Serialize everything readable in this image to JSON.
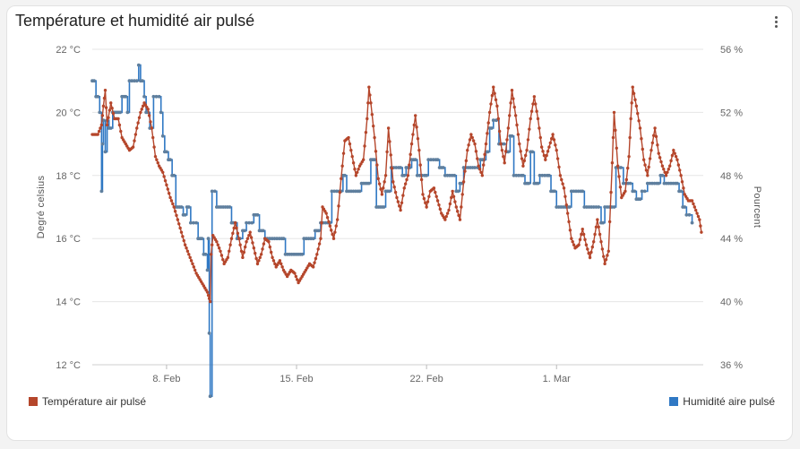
{
  "card": {
    "title": "Température et humidité air pulsé"
  },
  "colors": {
    "temperature": "#b5462b",
    "humidity": "#2f78c4",
    "humidity_marker": "#5f7f9e",
    "grid": "#e6e6e6"
  },
  "chart_data": {
    "type": "line",
    "x_ticks": [
      "8. Feb",
      "15. Feb",
      "22. Feb",
      "1. Mar"
    ],
    "x_range": [
      "Feb 4",
      "Mar 7"
    ],
    "y_left": {
      "label": "Degré celsius",
      "ticks": [
        "12 °C",
        "14 °C",
        "16 °C",
        "18 °C",
        "20 °C",
        "22 °C"
      ],
      "range": [
        12,
        22
      ]
    },
    "y_right": {
      "label": "Pourcent",
      "ticks": [
        "36 %",
        "40 %",
        "44 %",
        "48 %",
        "52 %",
        "56 %"
      ],
      "range": [
        36,
        56
      ]
    },
    "legend_position": "bottom",
    "series": [
      {
        "name": "Température air pulsé",
        "axis": "left",
        "style": "line-with-markers",
        "points": [
          [
            4.0,
            19.3
          ],
          [
            4.3,
            19.3
          ],
          [
            4.5,
            19.6
          ],
          [
            4.6,
            20.2
          ],
          [
            4.7,
            20.7
          ],
          [
            4.8,
            19.6
          ],
          [
            5.0,
            20.3
          ],
          [
            5.2,
            19.8
          ],
          [
            5.4,
            19.8
          ],
          [
            5.6,
            19.2
          ],
          [
            5.8,
            19.0
          ],
          [
            6.0,
            18.8
          ],
          [
            6.2,
            18.9
          ],
          [
            6.4,
            19.5
          ],
          [
            6.6,
            20.0
          ],
          [
            6.8,
            20.3
          ],
          [
            7.0,
            20.1
          ],
          [
            7.2,
            19.5
          ],
          [
            7.4,
            18.6
          ],
          [
            7.6,
            18.3
          ],
          [
            7.8,
            18.1
          ],
          [
            8.0,
            17.7
          ],
          [
            8.2,
            17.3
          ],
          [
            8.4,
            17.0
          ],
          [
            8.6,
            16.6
          ],
          [
            8.8,
            16.2
          ],
          [
            9.0,
            15.8
          ],
          [
            9.2,
            15.5
          ],
          [
            9.4,
            15.2
          ],
          [
            9.6,
            14.9
          ],
          [
            9.8,
            14.7
          ],
          [
            10.0,
            14.5
          ],
          [
            10.2,
            14.3
          ],
          [
            10.35,
            14.0
          ],
          [
            10.4,
            15.5
          ],
          [
            10.5,
            16.1
          ],
          [
            10.7,
            15.9
          ],
          [
            10.9,
            15.6
          ],
          [
            11.1,
            15.2
          ],
          [
            11.3,
            15.4
          ],
          [
            11.5,
            16.0
          ],
          [
            11.7,
            16.5
          ],
          [
            11.9,
            16.0
          ],
          [
            12.1,
            15.4
          ],
          [
            12.3,
            15.9
          ],
          [
            12.5,
            16.2
          ],
          [
            12.7,
            15.7
          ],
          [
            12.9,
            15.2
          ],
          [
            13.1,
            15.5
          ],
          [
            13.3,
            16.0
          ],
          [
            13.5,
            15.9
          ],
          [
            13.7,
            15.4
          ],
          [
            13.9,
            15.1
          ],
          [
            14.1,
            15.3
          ],
          [
            14.3,
            15.0
          ],
          [
            14.5,
            14.8
          ],
          [
            14.7,
            15.0
          ],
          [
            14.9,
            14.9
          ],
          [
            15.1,
            14.6
          ],
          [
            15.3,
            14.8
          ],
          [
            15.5,
            15.0
          ],
          [
            15.7,
            15.2
          ],
          [
            15.9,
            15.1
          ],
          [
            16.1,
            15.5
          ],
          [
            16.3,
            16.0
          ],
          [
            16.4,
            17.0
          ],
          [
            16.6,
            16.8
          ],
          [
            16.8,
            16.4
          ],
          [
            17.0,
            16.0
          ],
          [
            17.2,
            16.6
          ],
          [
            17.4,
            17.9
          ],
          [
            17.6,
            19.1
          ],
          [
            17.8,
            19.2
          ],
          [
            18.0,
            18.6
          ],
          [
            18.2,
            18.0
          ],
          [
            18.4,
            18.3
          ],
          [
            18.6,
            18.5
          ],
          [
            18.8,
            19.8
          ],
          [
            18.9,
            20.8
          ],
          [
            19.0,
            20.3
          ],
          [
            19.2,
            19.2
          ],
          [
            19.4,
            17.9
          ],
          [
            19.6,
            17.4
          ],
          [
            19.8,
            18.0
          ],
          [
            19.95,
            19.5
          ],
          [
            20.2,
            17.8
          ],
          [
            20.4,
            17.3
          ],
          [
            20.6,
            16.9
          ],
          [
            20.8,
            17.6
          ],
          [
            21.0,
            18.0
          ],
          [
            21.2,
            19.0
          ],
          [
            21.4,
            19.9
          ],
          [
            21.6,
            18.8
          ],
          [
            21.8,
            17.4
          ],
          [
            22.0,
            17.0
          ],
          [
            22.2,
            17.5
          ],
          [
            22.4,
            17.6
          ],
          [
            22.6,
            17.2
          ],
          [
            22.8,
            16.8
          ],
          [
            23.0,
            16.6
          ],
          [
            23.2,
            16.9
          ],
          [
            23.4,
            17.5
          ],
          [
            23.6,
            17.0
          ],
          [
            23.8,
            16.6
          ],
          [
            24.0,
            17.8
          ],
          [
            24.2,
            18.8
          ],
          [
            24.4,
            19.3
          ],
          [
            24.6,
            19.0
          ],
          [
            24.8,
            18.3
          ],
          [
            25.0,
            18.0
          ],
          [
            25.2,
            19.0
          ],
          [
            25.4,
            20.0
          ],
          [
            25.6,
            20.8
          ],
          [
            25.8,
            20.2
          ],
          [
            26.0,
            19.0
          ],
          [
            26.2,
            18.4
          ],
          [
            26.4,
            19.5
          ],
          [
            26.6,
            20.7
          ],
          [
            26.8,
            19.9
          ],
          [
            27.0,
            19.0
          ],
          [
            27.2,
            18.3
          ],
          [
            27.4,
            18.8
          ],
          [
            27.6,
            19.8
          ],
          [
            27.8,
            20.5
          ],
          [
            28.0,
            19.8
          ],
          [
            28.2,
            18.9
          ],
          [
            28.4,
            18.5
          ],
          [
            28.6,
            18.9
          ],
          [
            28.8,
            19.3
          ],
          [
            29.0,
            18.8
          ],
          [
            29.2,
            18.0
          ],
          [
            29.4,
            17.6
          ],
          [
            29.6,
            16.8
          ],
          [
            29.8,
            16.0
          ],
          [
            30.0,
            15.7
          ],
          [
            30.2,
            15.8
          ],
          [
            30.4,
            16.3
          ],
          [
            30.6,
            15.8
          ],
          [
            30.8,
            15.4
          ],
          [
            31.0,
            15.9
          ],
          [
            31.2,
            16.6
          ],
          [
            31.4,
            15.9
          ],
          [
            31.6,
            15.2
          ],
          [
            31.8,
            15.6
          ],
          [
            32.0,
            18.4
          ],
          [
            32.1,
            20.0
          ],
          [
            32.3,
            18.3
          ],
          [
            32.5,
            17.3
          ],
          [
            32.7,
            17.5
          ],
          [
            32.9,
            18.6
          ],
          [
            33.0,
            19.8
          ],
          [
            33.1,
            20.8
          ],
          [
            33.3,
            20.2
          ],
          [
            33.5,
            19.5
          ],
          [
            33.7,
            18.5
          ],
          [
            33.9,
            18.0
          ],
          [
            34.1,
            18.8
          ],
          [
            34.3,
            19.5
          ],
          [
            34.5,
            18.7
          ],
          [
            34.7,
            18.3
          ],
          [
            34.9,
            18.0
          ],
          [
            35.1,
            18.3
          ],
          [
            35.3,
            18.8
          ],
          [
            35.5,
            18.5
          ],
          [
            35.7,
            18.0
          ],
          [
            35.9,
            17.4
          ],
          [
            36.1,
            17.2
          ],
          [
            36.3,
            17.2
          ],
          [
            36.5,
            16.9
          ],
          [
            36.7,
            16.6
          ],
          [
            36.8,
            16.2
          ]
        ]
      },
      {
        "name": "Humidité aire pulsé",
        "axis": "right",
        "style": "step-with-markers",
        "points": [
          [
            4.0,
            54.0
          ],
          [
            4.2,
            53.0
          ],
          [
            4.4,
            52.0
          ],
          [
            4.5,
            47.0
          ],
          [
            4.55,
            50.0
          ],
          [
            4.6,
            51.5
          ],
          [
            4.7,
            49.5
          ],
          [
            4.8,
            51.5
          ],
          [
            4.9,
            51.0
          ],
          [
            5.1,
            52.0
          ],
          [
            5.4,
            52.0
          ],
          [
            5.6,
            53.0
          ],
          [
            5.9,
            52.0
          ],
          [
            6.0,
            54.0
          ],
          [
            6.4,
            54.0
          ],
          [
            6.5,
            55.0
          ],
          [
            6.6,
            54.0
          ],
          [
            6.8,
            53.0
          ],
          [
            6.9,
            52.0
          ],
          [
            7.1,
            51.0
          ],
          [
            7.3,
            53.0
          ],
          [
            7.6,
            53.0
          ],
          [
            7.7,
            52.0
          ],
          [
            7.8,
            50.5
          ],
          [
            7.9,
            49.5
          ],
          [
            8.1,
            49.0
          ],
          [
            8.3,
            48.0
          ],
          [
            8.5,
            46.0
          ],
          [
            8.7,
            46.0
          ],
          [
            8.9,
            45.5
          ],
          [
            9.1,
            46.0
          ],
          [
            9.3,
            45.0
          ],
          [
            9.6,
            45.0
          ],
          [
            9.7,
            44.0
          ],
          [
            9.9,
            44.0
          ],
          [
            10.0,
            43.0
          ],
          [
            10.2,
            42.0
          ],
          [
            10.25,
            44.0
          ],
          [
            10.3,
            38.0
          ],
          [
            10.35,
            34.0
          ],
          [
            10.45,
            47.0
          ],
          [
            10.6,
            47.0
          ],
          [
            10.7,
            46.0
          ],
          [
            11.4,
            46.0
          ],
          [
            11.5,
            45.0
          ],
          [
            11.7,
            45.0
          ],
          [
            11.8,
            44.0
          ],
          [
            12.1,
            44.5
          ],
          [
            12.3,
            45.0
          ],
          [
            12.6,
            45.0
          ],
          [
            12.7,
            45.5
          ],
          [
            13.0,
            44.5
          ],
          [
            13.3,
            44.0
          ],
          [
            14.2,
            44.0
          ],
          [
            14.4,
            43.0
          ],
          [
            15.2,
            43.0
          ],
          [
            15.4,
            44.0
          ],
          [
            15.9,
            44.0
          ],
          [
            16.0,
            44.5
          ],
          [
            16.3,
            45.0
          ],
          [
            16.7,
            45.0
          ],
          [
            16.9,
            47.0
          ],
          [
            17.3,
            47.0
          ],
          [
            17.5,
            48.0
          ],
          [
            17.7,
            47.0
          ],
          [
            18.3,
            47.0
          ],
          [
            18.5,
            47.5
          ],
          [
            18.8,
            47.5
          ],
          [
            19.0,
            49.0
          ],
          [
            19.3,
            46.0
          ],
          [
            19.6,
            46.0
          ],
          [
            19.8,
            47.0
          ],
          [
            20.1,
            48.5
          ],
          [
            20.5,
            48.5
          ],
          [
            20.7,
            48.0
          ],
          [
            20.9,
            48.5
          ],
          [
            21.2,
            49.0
          ],
          [
            21.5,
            48.0
          ],
          [
            21.9,
            48.0
          ],
          [
            22.1,
            49.0
          ],
          [
            22.5,
            49.0
          ],
          [
            22.7,
            48.5
          ],
          [
            23.0,
            48.0
          ],
          [
            23.5,
            48.0
          ],
          [
            23.6,
            47.0
          ],
          [
            23.8,
            47.5
          ],
          [
            24.0,
            48.5
          ],
          [
            24.6,
            48.5
          ],
          [
            24.9,
            49.0
          ],
          [
            25.2,
            49.5
          ],
          [
            25.4,
            51.0
          ],
          [
            25.6,
            51.5
          ],
          [
            25.9,
            50.0
          ],
          [
            26.3,
            49.5
          ],
          [
            26.5,
            50.5
          ],
          [
            26.7,
            48.0
          ],
          [
            27.1,
            48.0
          ],
          [
            27.3,
            47.5
          ],
          [
            27.6,
            49.5
          ],
          [
            27.8,
            47.5
          ],
          [
            28.1,
            48.0
          ],
          [
            28.5,
            48.0
          ],
          [
            28.7,
            47.0
          ],
          [
            29.0,
            46.0
          ],
          [
            29.6,
            46.0
          ],
          [
            29.8,
            47.0
          ],
          [
            30.3,
            47.0
          ],
          [
            30.5,
            46.0
          ],
          [
            31.0,
            46.0
          ],
          [
            31.4,
            45.0
          ],
          [
            31.6,
            46.0
          ],
          [
            32.1,
            46.0
          ],
          [
            32.2,
            48.5
          ],
          [
            32.6,
            47.5
          ],
          [
            33.1,
            47.0
          ],
          [
            33.3,
            46.5
          ],
          [
            33.6,
            47.0
          ],
          [
            33.9,
            47.5
          ],
          [
            34.4,
            47.5
          ],
          [
            34.6,
            48.0
          ],
          [
            34.8,
            47.5
          ],
          [
            35.4,
            47.5
          ],
          [
            35.6,
            47.0
          ],
          [
            35.8,
            46.0
          ],
          [
            36.0,
            45.5
          ],
          [
            36.3,
            45.0
          ]
        ]
      }
    ]
  },
  "legend": {
    "temperature_label": "Température air pulsé",
    "humidity_label": "Humidité aire pulsé"
  }
}
